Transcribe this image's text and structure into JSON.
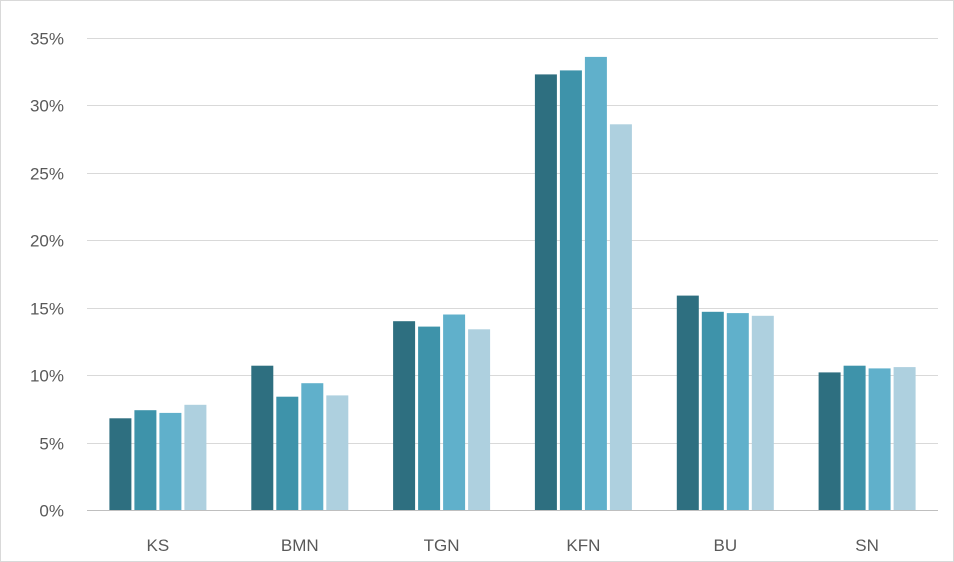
{
  "chart_data": {
    "type": "bar",
    "title": "",
    "xlabel": "",
    "ylabel": "",
    "categories": [
      "KS",
      "BMN",
      "TGN",
      "KFN",
      "BU",
      "SN"
    ],
    "series": [
      {
        "values": [
          6.8,
          10.7,
          14.0,
          32.3,
          15.9,
          10.2
        ],
        "color": "#2e6f80"
      },
      {
        "values": [
          7.4,
          8.4,
          13.6,
          32.6,
          14.7,
          10.7
        ],
        "color": "#3e93aa"
      },
      {
        "values": [
          7.2,
          9.4,
          14.5,
          33.6,
          14.6,
          10.5
        ],
        "color": "#60b0cb"
      },
      {
        "values": [
          7.8,
          8.5,
          13.4,
          28.6,
          14.4,
          10.6
        ],
        "color": "#aed0df"
      }
    ],
    "ylim": [
      0,
      35
    ],
    "yticks": [
      "0%",
      "5%",
      "10%",
      "15%",
      "20%",
      "25%",
      "30%",
      "35%"
    ],
    "ytick_values": [
      0,
      5,
      10,
      15,
      20,
      25,
      30,
      35
    ],
    "grid": true,
    "legend": "none"
  },
  "colors": {
    "gridline": "#d9d9d9",
    "axis": "#bfbfbf",
    "tick_text": "#595959",
    "frame": "#d9d9d9"
  }
}
